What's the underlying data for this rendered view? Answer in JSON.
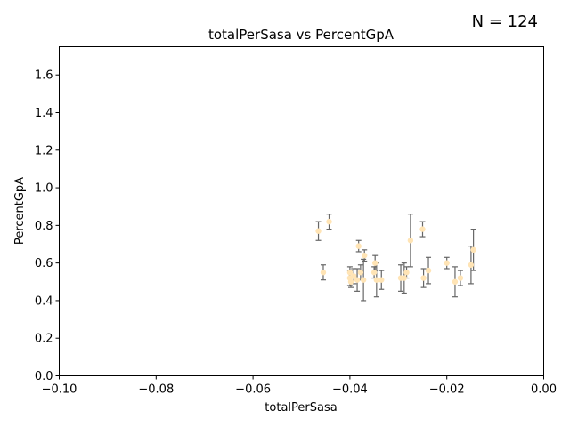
{
  "chart_data": {
    "type": "scatter",
    "title": "totalPerSasa vs PercentGpA",
    "xlabel": "totalPerSasa",
    "ylabel": "PercentGpA",
    "annotation": "N = 124",
    "xlim": [
      -0.1,
      0.0
    ],
    "ylim": [
      0.0,
      1.75
    ],
    "xticks": [
      -0.1,
      -0.08,
      -0.06,
      -0.04,
      -0.02,
      0.0
    ],
    "xtick_labels": [
      "−0.10",
      "−0.08",
      "−0.06",
      "−0.04",
      "−0.02",
      "0.00"
    ],
    "yticks": [
      0.0,
      0.2,
      0.4,
      0.6,
      0.8,
      1.0,
      1.2,
      1.4,
      1.6
    ],
    "ytick_labels": [
      "0.0",
      "0.2",
      "0.4",
      "0.6",
      "0.8",
      "1.0",
      "1.2",
      "1.4",
      "1.6"
    ],
    "grid": false,
    "colors": {
      "point": "#ffe4b5",
      "errorbar": "#666666"
    },
    "points": [
      {
        "x": -0.0465,
        "y": 0.77,
        "err": 0.05
      },
      {
        "x": -0.0455,
        "y": 0.55,
        "err": 0.04
      },
      {
        "x": -0.0443,
        "y": 0.82,
        "err": 0.04
      },
      {
        "x": -0.04,
        "y": 0.55,
        "err": 0.03
      },
      {
        "x": -0.04,
        "y": 0.52,
        "err": 0.04
      },
      {
        "x": -0.0398,
        "y": 0.5,
        "err": 0.03
      },
      {
        "x": -0.0392,
        "y": 0.53,
        "err": 0.04
      },
      {
        "x": -0.0385,
        "y": 0.51,
        "err": 0.06
      },
      {
        "x": -0.0382,
        "y": 0.69,
        "err": 0.03
      },
      {
        "x": -0.0378,
        "y": 0.55,
        "err": 0.04
      },
      {
        "x": -0.0372,
        "y": 0.51,
        "err": 0.11
      },
      {
        "x": -0.037,
        "y": 0.64,
        "err": 0.03
      },
      {
        "x": -0.035,
        "y": 0.55,
        "err": 0.03
      },
      {
        "x": -0.0348,
        "y": 0.6,
        "err": 0.04
      },
      {
        "x": -0.0345,
        "y": 0.51,
        "err": 0.09
      },
      {
        "x": -0.0335,
        "y": 0.51,
        "err": 0.05
      },
      {
        "x": -0.0295,
        "y": 0.52,
        "err": 0.07
      },
      {
        "x": -0.0288,
        "y": 0.52,
        "err": 0.08
      },
      {
        "x": -0.0283,
        "y": 0.55,
        "err": 0.03
      },
      {
        "x": -0.0275,
        "y": 0.72,
        "err": 0.14
      },
      {
        "x": -0.025,
        "y": 0.78,
        "err": 0.04
      },
      {
        "x": -0.0248,
        "y": 0.52,
        "err": 0.05
      },
      {
        "x": -0.0238,
        "y": 0.56,
        "err": 0.07
      },
      {
        "x": -0.02,
        "y": 0.6,
        "err": 0.03
      },
      {
        "x": -0.0183,
        "y": 0.5,
        "err": 0.08
      },
      {
        "x": -0.0172,
        "y": 0.52,
        "err": 0.04
      },
      {
        "x": -0.015,
        "y": 0.59,
        "err": 0.1
      },
      {
        "x": -0.0145,
        "y": 0.67,
        "err": 0.11
      }
    ]
  }
}
